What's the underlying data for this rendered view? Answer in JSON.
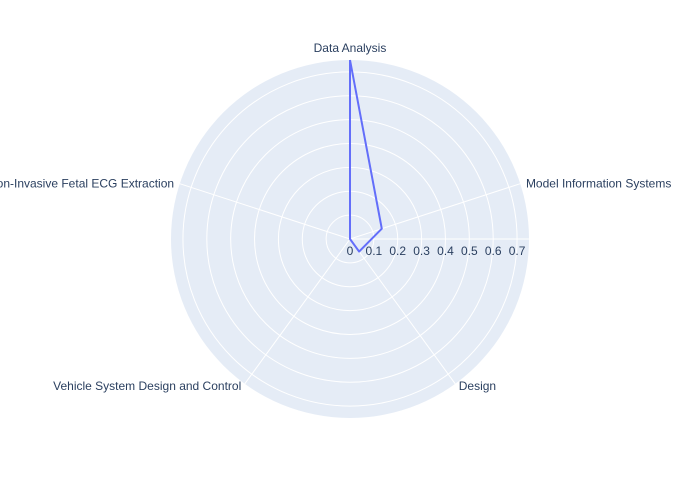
{
  "chart_data": {
    "type": "radar",
    "title": "",
    "categories": [
      "Data Analysis",
      "Model Information Systems",
      "Design",
      "Vehicle System Design and Control",
      "Non-Invasive Fetal ECG Extraction"
    ],
    "series": [
      {
        "name": "",
        "values": [
          0.75,
          0.14,
          0.065,
          0.0,
          0.0
        ],
        "color": "#636efa"
      }
    ],
    "radial_ticks": [
      0,
      0.1,
      0.2,
      0.3,
      0.4,
      0.5,
      0.6,
      0.7
    ],
    "radial_range": [
      0,
      0.75
    ],
    "grid": true,
    "legend": false,
    "colors": {
      "polar_background": "#e5ecf6",
      "grid": "#ffffff",
      "text": "#2a3f5f"
    }
  }
}
